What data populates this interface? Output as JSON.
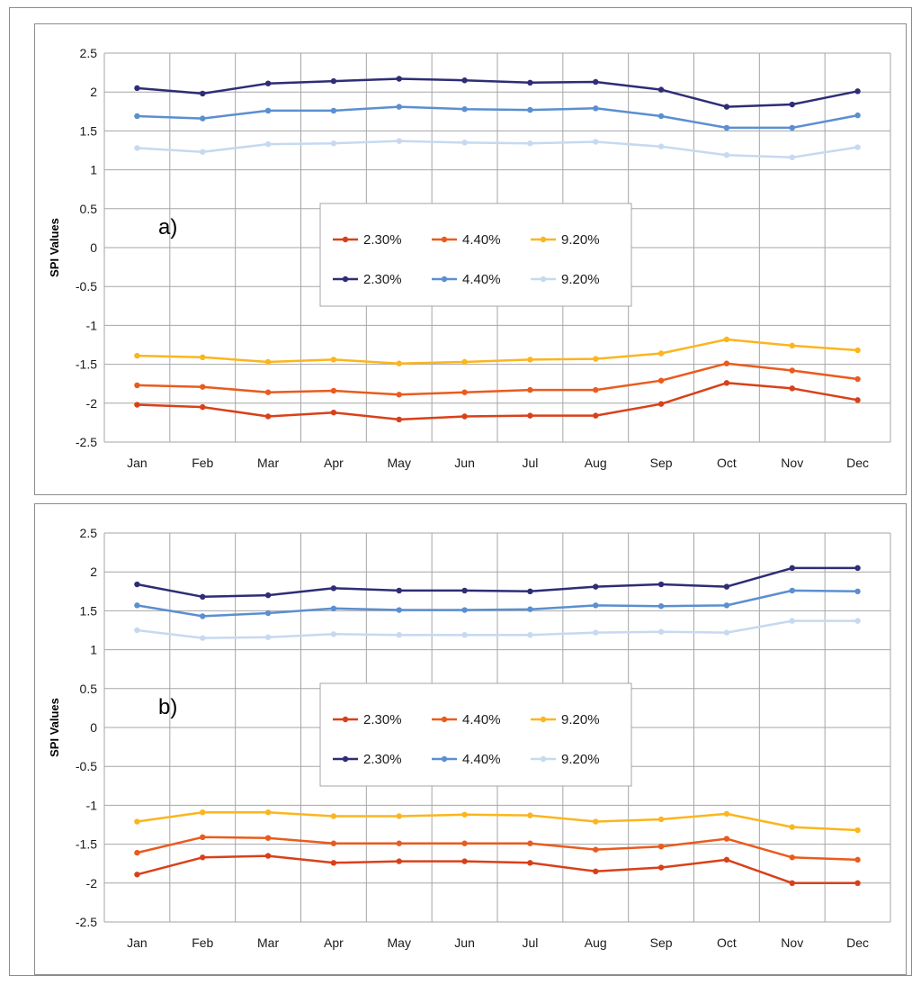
{
  "chart_data": [
    {
      "type": "line",
      "panel_label": "a)",
      "ylabel": "SPI Values",
      "ylim": [
        -2.5,
        2.5
      ],
      "yticks": [
        "2.5",
        "2",
        "1.5",
        "1",
        "0.5",
        "0",
        "-0.5",
        "-1",
        "-1.5",
        "-2",
        "-2.5"
      ],
      "categories": [
        "Jan",
        "Feb",
        "Mar",
        "Apr",
        "May",
        "Jun",
        "Jul",
        "Aug",
        "Sep",
        "Oct",
        "Nov",
        "Dec"
      ],
      "grid": true,
      "legend_position": "center",
      "series": [
        {
          "name": "2.30%",
          "color": "#d9401a",
          "values": [
            -2.02,
            -2.05,
            -2.17,
            -2.12,
            -2.21,
            -2.17,
            -2.16,
            -2.16,
            -2.01,
            -1.74,
            -1.81,
            -1.96
          ]
        },
        {
          "name": "4.40%",
          "color": "#ea5b1e",
          "values": [
            -1.77,
            -1.79,
            -1.86,
            -1.84,
            -1.89,
            -1.86,
            -1.83,
            -1.83,
            -1.71,
            -1.49,
            -1.58,
            -1.69
          ]
        },
        {
          "name": "9.20%",
          "color": "#fbb51e",
          "values": [
            -1.39,
            -1.41,
            -1.47,
            -1.44,
            -1.49,
            -1.47,
            -1.44,
            -1.43,
            -1.36,
            -1.18,
            -1.26,
            -1.32
          ]
        },
        {
          "name": "2.30%",
          "color": "#2e2d75",
          "values": [
            2.05,
            1.98,
            2.11,
            2.14,
            2.17,
            2.15,
            2.12,
            2.13,
            2.03,
            1.81,
            1.84,
            2.01
          ]
        },
        {
          "name": "4.40%",
          "color": "#5b8fd0",
          "values": [
            1.69,
            1.66,
            1.76,
            1.76,
            1.81,
            1.78,
            1.77,
            1.79,
            1.69,
            1.54,
            1.54,
            1.7
          ]
        },
        {
          "name": "9.20%",
          "color": "#c6d9f0",
          "values": [
            1.28,
            1.23,
            1.33,
            1.34,
            1.37,
            1.35,
            1.34,
            1.36,
            1.3,
            1.19,
            1.16,
            1.29
          ]
        }
      ]
    },
    {
      "type": "line",
      "panel_label": "b)",
      "ylabel": "SPI Values",
      "ylim": [
        -2.5,
        2.5
      ],
      "yticks": [
        "2.5",
        "2",
        "1.5",
        "1",
        "0.5",
        "0",
        "-0.5",
        "-1",
        "-1.5",
        "-2",
        "-2.5"
      ],
      "categories": [
        "Jan",
        "Feb",
        "Mar",
        "Apr",
        "May",
        "Jun",
        "Jul",
        "Aug",
        "Sep",
        "Oct",
        "Nov",
        "Dec"
      ],
      "grid": true,
      "legend_position": "center",
      "series": [
        {
          "name": "2.30%",
          "color": "#d9401a",
          "values": [
            -1.89,
            -1.67,
            -1.65,
            -1.74,
            -1.72,
            -1.72,
            -1.74,
            -1.85,
            -1.8,
            -1.7,
            -2.0,
            -2.0
          ]
        },
        {
          "name": "4.40%",
          "color": "#ea5b1e",
          "values": [
            -1.61,
            -1.41,
            -1.42,
            -1.49,
            -1.49,
            -1.49,
            -1.49,
            -1.57,
            -1.53,
            -1.43,
            -1.67,
            -1.7
          ]
        },
        {
          "name": "9.20%",
          "color": "#fbb51e",
          "values": [
            -1.21,
            -1.09,
            -1.09,
            -1.14,
            -1.14,
            -1.12,
            -1.13,
            -1.21,
            -1.18,
            -1.11,
            -1.28,
            -1.32
          ]
        },
        {
          "name": "2.30%",
          "color": "#2e2d75",
          "values": [
            1.84,
            1.68,
            1.7,
            1.79,
            1.76,
            1.76,
            1.75,
            1.81,
            1.84,
            1.81,
            2.05,
            2.05
          ]
        },
        {
          "name": "4.40%",
          "color": "#5b8fd0",
          "values": [
            1.57,
            1.43,
            1.47,
            1.53,
            1.51,
            1.51,
            1.52,
            1.57,
            1.56,
            1.57,
            1.76,
            1.75
          ]
        },
        {
          "name": "9.20%",
          "color": "#c6d9f0",
          "values": [
            1.25,
            1.15,
            1.16,
            1.2,
            1.19,
            1.19,
            1.19,
            1.22,
            1.23,
            1.22,
            1.37,
            1.37
          ]
        }
      ]
    }
  ]
}
